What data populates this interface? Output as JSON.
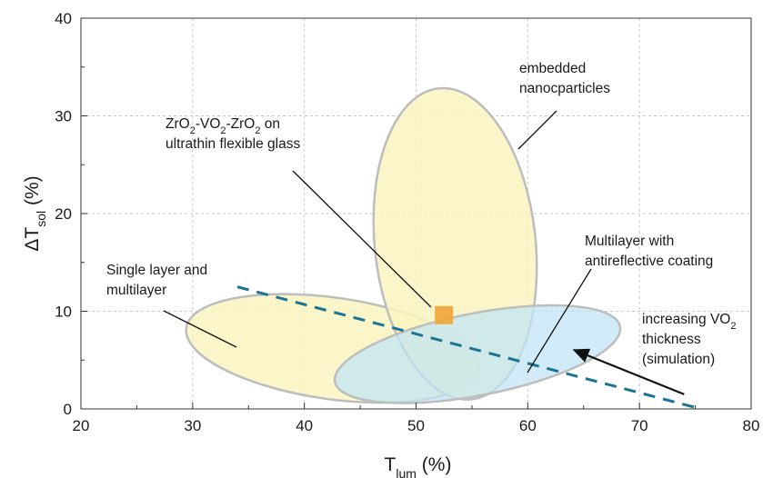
{
  "chart_data": {
    "type": "scatter",
    "title": "",
    "xlabel": {
      "main": "T",
      "sub": "lum",
      "rest": " (%)"
    },
    "ylabel": {
      "pre": "ΔT",
      "sub": "sol",
      "rest": "  (%)"
    },
    "xlim": [
      20,
      80
    ],
    "ylim": [
      0,
      40
    ],
    "xticks": [
      "20",
      "30",
      "40",
      "50",
      "60",
      "70",
      "80"
    ],
    "yticks": [
      "0",
      "10",
      "20",
      "30",
      "40"
    ],
    "grid": true,
    "regions": [
      {
        "label": "Single layer and multilayer",
        "cx": 42.5,
        "cy": 6.2,
        "rx": 13.2,
        "ry": 5.2,
        "rotate_deg": 8,
        "color": "#faf4bf"
      },
      {
        "label": "embedded nanocparticles",
        "cx": 53.5,
        "cy": 16.9,
        "rx": 7.2,
        "ry": 16.0,
        "rotate_deg": -6,
        "color": "#faf4bf"
      },
      {
        "label": "Multilayer with antireflective coating",
        "cx": 55.5,
        "cy": 5.6,
        "rx": 13.0,
        "ry": 4.2,
        "rotate_deg": -11,
        "color": "#bfe5f5"
      }
    ],
    "points": [
      {
        "label": "ZrO2-VO2-ZrO2 on ultrathin flexible glass",
        "x": 52.5,
        "y": 9.6,
        "color": "#f0a63a"
      }
    ],
    "trend_line": {
      "label": "increasing VO2 thickness (simulation)",
      "x": [
        34,
        75.5
      ],
      "y": [
        12.5,
        0
      ],
      "color": "#1c7392",
      "style": "dashed"
    },
    "arrow": {
      "from": [
        74,
        1.5
      ],
      "to": [
        64,
        6.1
      ]
    },
    "annotations": [
      {
        "id": "zro2",
        "lines": [
          [
            {
              "t": "ZrO"
            },
            {
              "t": "2",
              "sub": true
            },
            {
              "t": "-VO"
            },
            {
              "t": "2",
              "sub": true
            },
            {
              "t": "-ZrO"
            },
            {
              "t": "2",
              "sub": true
            },
            {
              "t": " on"
            }
          ],
          [
            {
              "t": "ultrathin flexible glass"
            }
          ]
        ]
      },
      {
        "id": "embedded",
        "lines": [
          [
            {
              "t": "embedded"
            }
          ],
          [
            {
              "t": "nanocparticles"
            }
          ]
        ]
      },
      {
        "id": "multilayer-ar",
        "lines": [
          [
            {
              "t": "Multilayer with"
            }
          ],
          [
            {
              "t": "antireflective coating"
            }
          ]
        ]
      },
      {
        "id": "single",
        "lines": [
          [
            {
              "t": "Single layer and"
            }
          ],
          [
            {
              "t": "multilayer"
            }
          ]
        ]
      },
      {
        "id": "increasing",
        "lines": [
          [
            {
              "t": "increasing VO"
            },
            {
              "t": "2",
              "sub": true
            }
          ],
          [
            {
              "t": "thickness"
            }
          ],
          [
            {
              "t": "(simulation)"
            }
          ]
        ]
      }
    ]
  }
}
